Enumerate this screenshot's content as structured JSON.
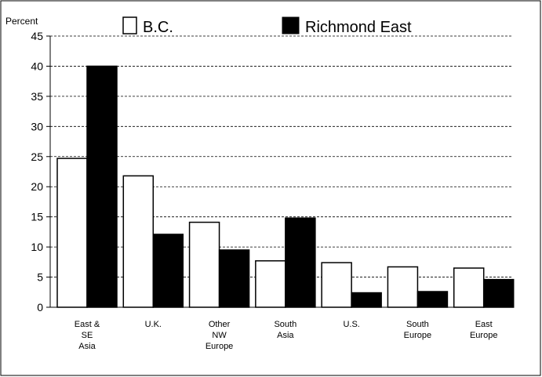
{
  "chart_data": {
    "type": "bar",
    "ylabel": "Percent",
    "ylim": [
      0,
      45
    ],
    "yticks": [
      0,
      5,
      10,
      15,
      20,
      25,
      30,
      35,
      40,
      45
    ],
    "grid": "horizontal-dashed",
    "legend_position": "top",
    "categories": [
      [
        "East &",
        "SE",
        "Asia"
      ],
      [
        "U.K."
      ],
      [
        "Other",
        "NW",
        "Europe"
      ],
      [
        "South",
        "Asia"
      ],
      [
        "U.S."
      ],
      [
        "South",
        "Europe"
      ],
      [
        "East",
        "Europe"
      ]
    ],
    "series": [
      {
        "name": "B.C.",
        "color": "#ffffff",
        "values": [
          24.7,
          21.8,
          14.1,
          7.7,
          7.4,
          6.7,
          6.5
        ]
      },
      {
        "name": "Richmond East",
        "color": "#000000",
        "values": [
          40.0,
          12.1,
          9.5,
          14.8,
          2.4,
          2.6,
          4.6
        ]
      }
    ]
  }
}
